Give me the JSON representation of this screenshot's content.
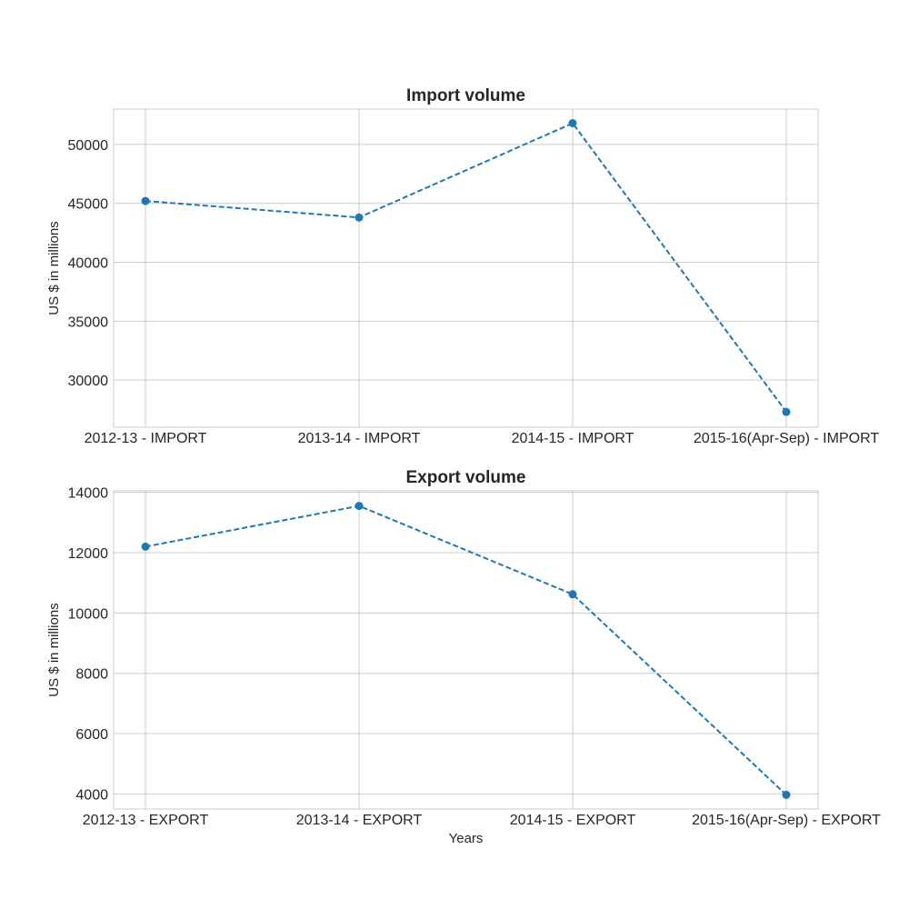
{
  "chart_data": [
    {
      "type": "line",
      "title": "Import volume",
      "xlabel": "",
      "ylabel": "US $ in millions",
      "categories": [
        "2012-13 - IMPORT",
        "2013-14 - IMPORT",
        "2014-15 - IMPORT",
        "2015-16(Apr-Sep) - IMPORT"
      ],
      "values": [
        45200,
        43800,
        51800,
        27300
      ],
      "ylim": [
        26000,
        53000
      ],
      "yticks": [
        30000,
        35000,
        40000,
        45000,
        50000
      ],
      "line_style": "dashed",
      "marker": "circle",
      "color": "#1f77b4",
      "grid": true
    },
    {
      "type": "line",
      "title": "Export volume",
      "xlabel": "Years",
      "ylabel": "US $ in millions",
      "categories": [
        "2012-13 - EXPORT",
        "2013-14 - EXPORT",
        "2014-15 - EXPORT",
        "2015-16(Apr-Sep) - EXPORT"
      ],
      "values": [
        12200,
        13550,
        10620,
        3970
      ],
      "ylim": [
        3500,
        14050
      ],
      "yticks": [
        4000,
        6000,
        8000,
        10000,
        12000,
        14000
      ],
      "line_style": "dashed",
      "marker": "circle",
      "color": "#1f77b4",
      "grid": true
    }
  ]
}
